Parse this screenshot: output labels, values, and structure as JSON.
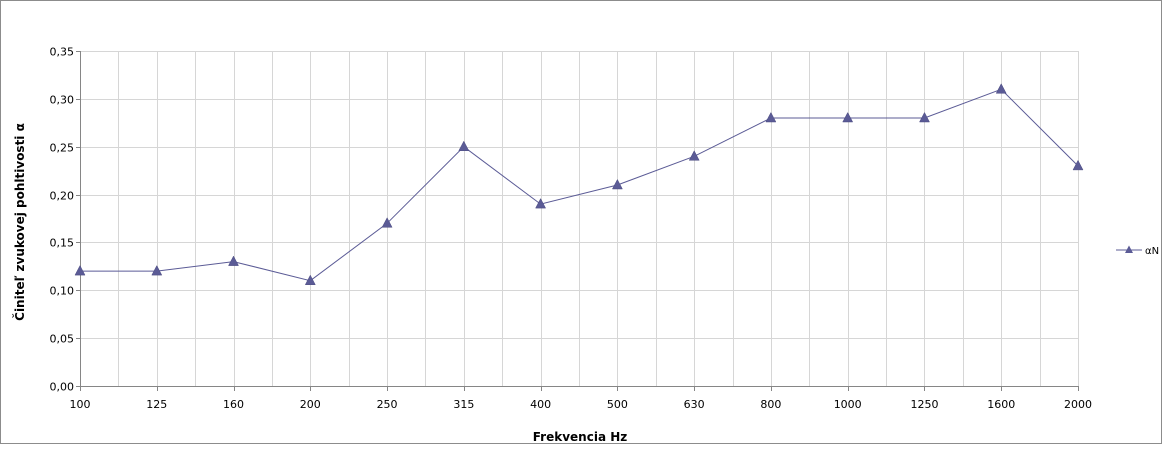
{
  "chart_data": {
    "type": "line",
    "categories": [
      "100",
      "125",
      "160",
      "200",
      "250",
      "315",
      "400",
      "500",
      "630",
      "800",
      "1000",
      "1250",
      "1600",
      "2000"
    ],
    "series": [
      {
        "name": "αN",
        "values": [
          0.12,
          0.12,
          0.13,
          0.11,
          0.17,
          0.25,
          0.19,
          0.21,
          0.24,
          0.28,
          0.28,
          0.28,
          0.31,
          0.23
        ],
        "color": "#5b5b96",
        "marker": "triangle"
      }
    ],
    "xlabel": "Frekvencia Hz",
    "ylabel": "Činiteľ zvukovej pohltivosti α",
    "ylim": [
      0,
      0.35
    ],
    "yticks": [
      0,
      0.05,
      0.1,
      0.15,
      0.2,
      0.25,
      0.3,
      0.35
    ],
    "ytick_labels": [
      "0,00",
      "0,05",
      "0,10",
      "0,15",
      "0,20",
      "0,25",
      "0,30",
      "0,35"
    ],
    "grid": true,
    "legend_position": "right",
    "colors": {
      "grid": "#d6d6d6",
      "axis": "#868686",
      "border": "#8c8c8c"
    }
  }
}
